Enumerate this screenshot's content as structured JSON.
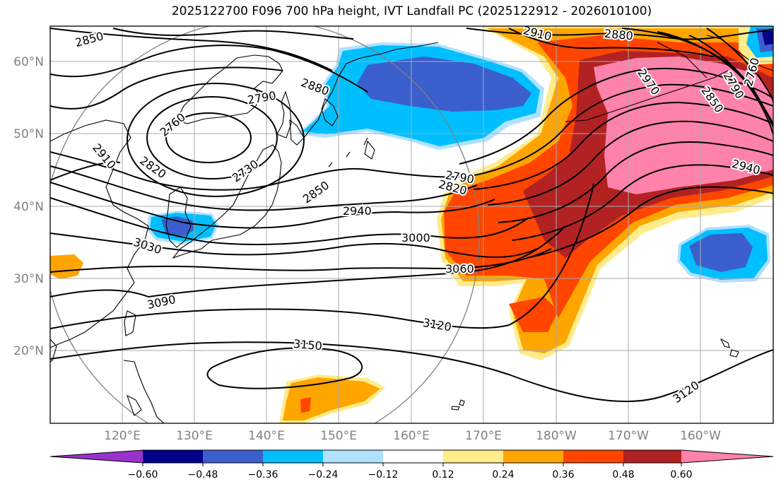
{
  "title": "2025122700 F096 700 hPa height, IVT Landfall PC (2025122912 - 2026010100)",
  "map": {
    "lat_labels": [
      "60°N",
      "50°N",
      "40°N",
      "30°N",
      "20°N"
    ],
    "lon_labels": [
      "120°E",
      "130°E",
      "140°E",
      "150°E",
      "160°E",
      "170°E",
      "180°W",
      "170°W",
      "160°W"
    ]
  },
  "contour_labels": [
    "2850",
    "2910",
    "2880",
    "2790",
    "2880",
    "2760",
    "2910",
    "2820",
    "2730",
    "2850",
    "2970",
    "2850",
    "2790",
    "2790",
    "2820",
    "2940",
    "2940",
    "3000",
    "3030",
    "3060",
    "3090",
    "3120",
    "3150",
    "3120",
    "2760"
  ],
  "colorbar": {
    "ticks": [
      "−0.60",
      "−0.48",
      "−0.36",
      "−0.24",
      "−0.12",
      "0.12",
      "0.24",
      "0.36",
      "0.48",
      "0.60"
    ],
    "colors": [
      "#9932cc",
      "#00008b",
      "#3a5fcd",
      "#00bfff",
      "#b0e2ff",
      "#ffffff",
      "#ffec8b",
      "#ffa500",
      "#ff4500",
      "#b22222",
      "#ff82ab"
    ]
  }
}
